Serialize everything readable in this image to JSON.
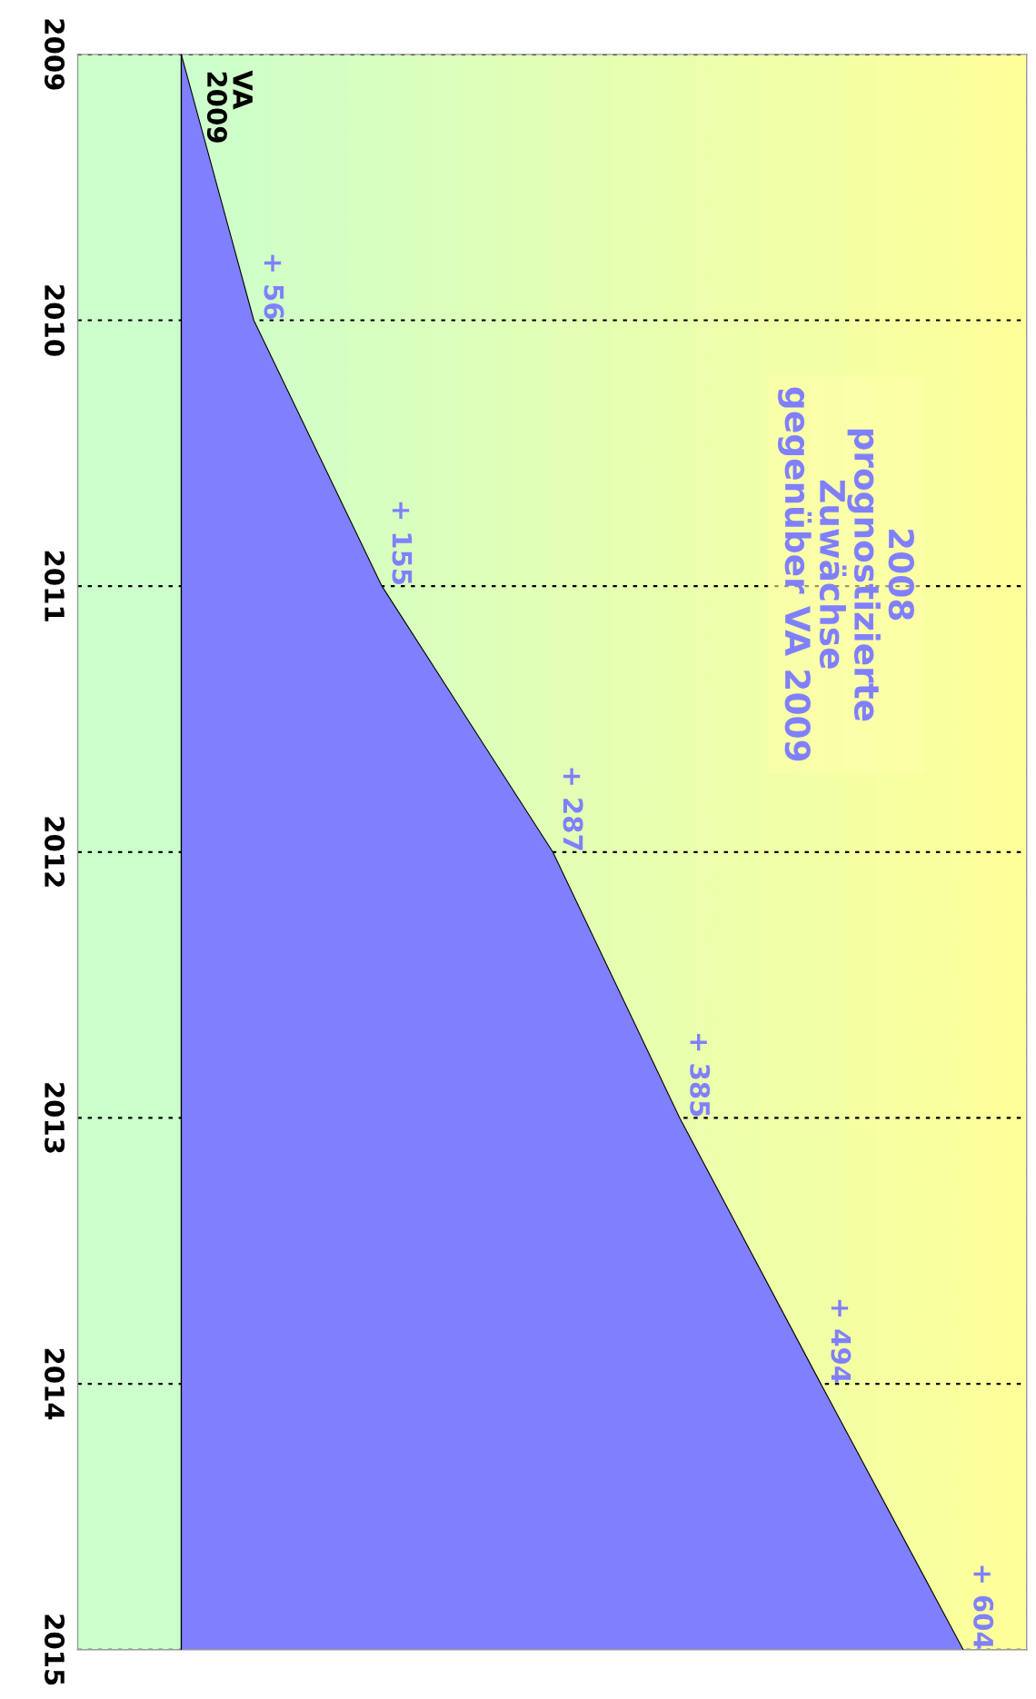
{
  "chart_data": {
    "type": "area",
    "orientation": "horizontal",
    "title": "2008\nprognostizierte\nZuwächse\ngegenüber VA 2009",
    "categories": [
      "2009",
      "2010",
      "2011",
      "2012",
      "2013",
      "2014",
      "2015"
    ],
    "series": [
      {
        "color": "#8080ff",
        "values": [
          0,
          56,
          155,
          287,
          385,
          494,
          604
        ],
        "value_labels": [
          null,
          "+ 56",
          "+ 155",
          "+ 287",
          "+ 385",
          "+ 494",
          "+ 604"
        ]
      }
    ],
    "xlim": [
      -80,
      653
    ],
    "tick_labels": "y",
    "grid": "y",
    "ref_lines": [
      {
        "axis": "x",
        "value": 0,
        "color": "#000000"
      }
    ],
    "annotations": [
      "VA\n2009"
    ]
  }
}
